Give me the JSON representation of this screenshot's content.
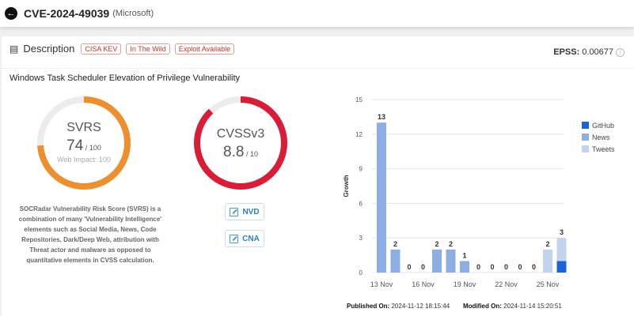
{
  "header": {
    "back_icon": "arrow-left-icon",
    "cve_id": "CVE-2024-49039",
    "vendor": "(Microsoft)"
  },
  "description": {
    "label": "Description",
    "icon": "list-icon",
    "tags": [
      "CISA KEV",
      "In The Wild",
      "Exploit Available"
    ],
    "epss_label": "EPSS:",
    "epss_value": "0.00677",
    "title": "Windows Task Scheduler Elevation of Privilege Vulnerability"
  },
  "svrs": {
    "label": "SVRS",
    "score": "74",
    "max": "/ 100",
    "score_value": 74,
    "max_value": 100,
    "web_impact": "Web Impact: 100",
    "color": "#ee8f2d",
    "text": "SOCRadar Vulnerability Risk Score (SVRS) is a combination of many 'Vulnerability Intelligence' elements such as Social Media, News, Code Repositories, Dark/Deep Web, attribution with Threat actor and malware as opposed to quantitative elements in CVSS calculation."
  },
  "cvss": {
    "label": "CVSSv3",
    "score": "8.8",
    "max": "/ 10",
    "score_value": 8.8,
    "max_value": 10,
    "color": "#d91c37"
  },
  "links": [
    {
      "label": "NVD",
      "icon": "external-link-icon"
    },
    {
      "label": "CNA",
      "icon": "external-link-icon"
    }
  ],
  "meta": {
    "published_label": "Published On:",
    "published": "2024-11-12 18:15:44",
    "modified_label": "Modified On:",
    "modified": "2024-11-14 15:20:51"
  },
  "chart_data": {
    "type": "bar",
    "stacked": true,
    "ylabel": "Growth",
    "ylim": [
      0,
      15
    ],
    "yticks": [
      "0",
      "3",
      "6",
      "9",
      "12",
      "15"
    ],
    "categories": [
      "13 Nov",
      "14 Nov",
      "15 Nov",
      "16 Nov",
      "17 Nov",
      "18 Nov",
      "19 Nov",
      "20 Nov",
      "21 Nov",
      "22 Nov",
      "23 Nov",
      "24 Nov",
      "25 Nov",
      "26 Nov"
    ],
    "xticks": [
      "13 Nov",
      "16 Nov",
      "19 Nov",
      "22 Nov",
      "25 Nov"
    ],
    "series": [
      {
        "name": "GitHub",
        "color": "#1a63d8",
        "values": [
          0,
          0,
          0,
          0,
          0,
          0,
          0,
          0,
          0,
          0,
          0,
          0,
          0,
          1
        ]
      },
      {
        "name": "News",
        "color": "#8eaee3",
        "values": [
          13,
          2,
          0,
          0,
          2,
          2,
          1,
          0,
          0,
          0,
          0,
          0,
          0,
          0
        ]
      },
      {
        "name": "Tweets",
        "color": "#c3d3ee",
        "values": [
          0,
          0,
          0,
          0,
          0,
          0,
          0,
          0,
          0,
          0,
          0,
          0,
          2,
          2
        ]
      }
    ],
    "totals": [
      "13",
      "2",
      "0",
      "0",
      "2",
      "2",
      "1",
      "0",
      "0",
      "0",
      "0",
      "0",
      "2",
      "3"
    ],
    "legend": "right",
    "grid": true
  }
}
